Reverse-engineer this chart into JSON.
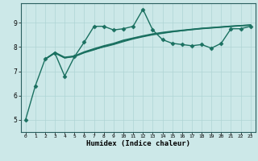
{
  "xlabel": "Humidex (Indice chaleur)",
  "background_color": "#cce8e8",
  "grid_color": "#aed4d4",
  "line_color": "#1a7060",
  "xlim": [
    -0.5,
    23.5
  ],
  "ylim": [
    4.5,
    9.8
  ],
  "yticks": [
    5,
    6,
    7,
    8,
    9
  ],
  "xticks": [
    0,
    1,
    2,
    3,
    4,
    5,
    6,
    7,
    8,
    9,
    10,
    11,
    12,
    13,
    14,
    15,
    16,
    17,
    18,
    19,
    20,
    21,
    22,
    23
  ],
  "lines": [
    {
      "x": [
        0,
        1,
        2,
        3,
        4,
        5,
        6,
        7,
        8,
        9,
        10,
        11,
        12,
        13,
        14,
        15,
        16,
        17,
        18,
        19,
        20,
        21,
        22,
        23
      ],
      "y": [
        5.0,
        6.4,
        7.5,
        7.75,
        6.8,
        7.6,
        8.2,
        8.85,
        8.85,
        8.7,
        8.75,
        8.85,
        9.55,
        8.7,
        8.3,
        8.15,
        8.1,
        8.05,
        8.1,
        7.95,
        8.15,
        8.75,
        8.75,
        8.85
      ],
      "marker": "D",
      "markersize": 2.5,
      "linewidth": 1.0
    },
    {
      "x": [
        2,
        3,
        4,
        5,
        6,
        7,
        8,
        9,
        10,
        11,
        12,
        13,
        14,
        15,
        16,
        17,
        18,
        19,
        20,
        21,
        22,
        23
      ],
      "y": [
        7.5,
        7.75,
        7.55,
        7.62,
        7.78,
        7.9,
        8.0,
        8.1,
        8.22,
        8.33,
        8.42,
        8.5,
        8.56,
        8.62,
        8.67,
        8.72,
        8.76,
        8.79,
        8.82,
        8.85,
        8.88,
        8.9
      ],
      "marker": null,
      "markersize": 0,
      "linewidth": 1.0
    },
    {
      "x": [
        2,
        3,
        4,
        5,
        6,
        7,
        8,
        9,
        10,
        11,
        12,
        13,
        14,
        15,
        16,
        17,
        18,
        19,
        20,
        21,
        22,
        23
      ],
      "y": [
        7.5,
        7.78,
        7.58,
        7.63,
        7.8,
        7.93,
        8.05,
        8.15,
        8.28,
        8.37,
        8.46,
        8.54,
        8.6,
        8.65,
        8.69,
        8.73,
        8.77,
        8.8,
        8.83,
        8.86,
        8.88,
        8.91
      ],
      "marker": null,
      "markersize": 0,
      "linewidth": 1.0
    },
    {
      "x": [
        2,
        3,
        4,
        5,
        6,
        7,
        8,
        9,
        10,
        11,
        12,
        13,
        14,
        15,
        16,
        17,
        18,
        19,
        20,
        21,
        22,
        23
      ],
      "y": [
        7.5,
        7.75,
        7.55,
        7.6,
        7.76,
        7.88,
        8.02,
        8.12,
        8.25,
        8.35,
        8.44,
        8.52,
        8.58,
        8.63,
        8.67,
        8.71,
        8.75,
        8.78,
        8.81,
        8.84,
        8.87,
        8.89
      ],
      "marker": null,
      "markersize": 0,
      "linewidth": 1.0
    }
  ]
}
